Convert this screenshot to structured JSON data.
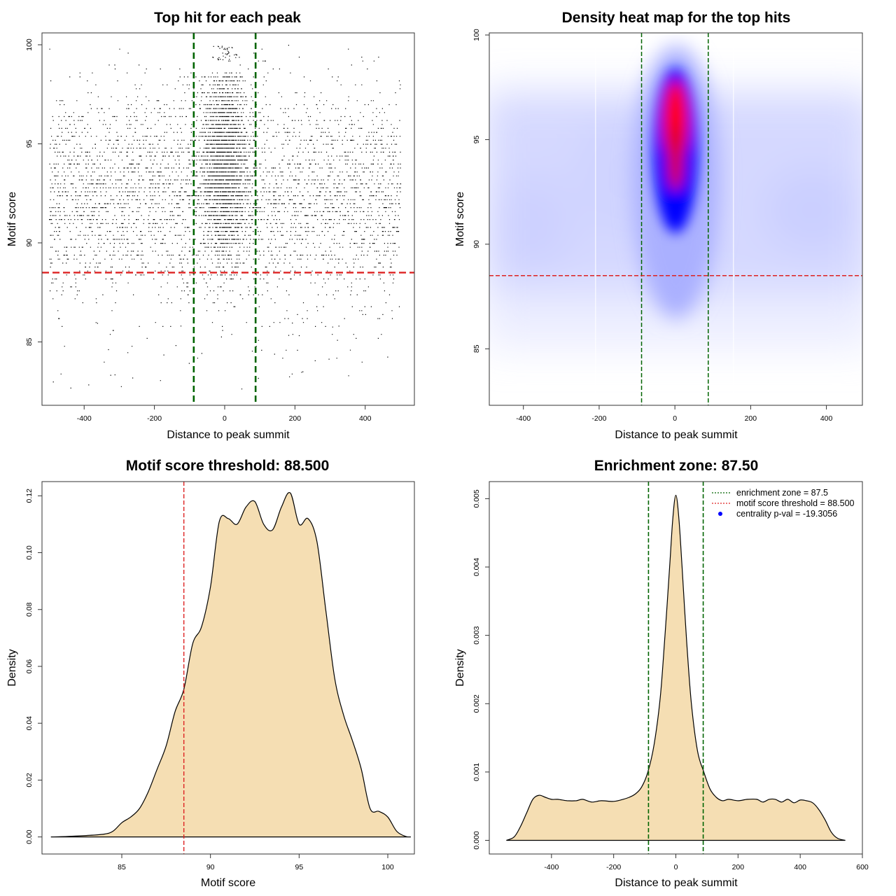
{
  "colors": {
    "points": "#000000",
    "enrichment_line": "#006400",
    "threshold_line": "#dd2222",
    "density_fill": "#f5deb3",
    "heat_low": "#ffffff",
    "heat_mid": "#0000ff",
    "heat_high": "#ff0000",
    "legend_point": "#0000ff"
  },
  "chart_data": [
    {
      "type": "scatter",
      "title": "Top hit for each peak",
      "xlabel": "Distance to peak summit",
      "ylabel": "Motif score",
      "xlim": [
        -520,
        540
      ],
      "ylim": [
        81.8,
        100.6
      ],
      "xticks": [
        -400,
        -200,
        0,
        200,
        400
      ],
      "yticks": [
        85,
        90,
        95,
        100
      ],
      "grid": false,
      "vlines": [
        -88,
        88
      ],
      "hline": 88.5,
      "points_description_stats": {
        "x_range": [
          -500,
          500
        ],
        "y_range": [
          82.3,
          100
        ],
        "center_cluster_x": [
          -60,
          60
        ],
        "approx_points": 5500
      }
    },
    {
      "type": "heatmap",
      "title": "Density heat map for the top hits",
      "xlabel": "Distance to peak summit",
      "ylabel": "Motif score",
      "xlim": [
        -490,
        495
      ],
      "ylim": [
        82.3,
        100.1
      ],
      "xticks": [
        -400,
        -200,
        0,
        200,
        400
      ],
      "yticks": [
        85,
        90,
        95,
        100
      ],
      "grid": false,
      "vlines": [
        -88,
        88
      ],
      "hline": 88.5,
      "hotspot": {
        "x": 0,
        "y": 95.5
      }
    },
    {
      "type": "area",
      "title": "Motif score threshold: 88.500",
      "xlabel": "Motif score",
      "ylabel": "Density",
      "xlim": [
        80.5,
        101.5
      ],
      "ylim": [
        -0.006,
        0.125
      ],
      "xticks": [
        85,
        90,
        95,
        100
      ],
      "yticks": [
        0.0,
        0.02,
        0.04,
        0.06,
        0.08,
        0.1,
        0.12
      ],
      "ytick_labels": [
        "0.00",
        "0.02",
        "0.04",
        "0.06",
        "0.08",
        "0.10",
        "0.12"
      ],
      "grid": false,
      "vline": 88.5,
      "x": [
        81.0,
        82.0,
        83.0,
        84.0,
        84.5,
        85.0,
        85.5,
        86.0,
        86.5,
        87.0,
        87.5,
        88.0,
        88.5,
        89.0,
        89.5,
        90.0,
        90.5,
        91.0,
        91.5,
        92.0,
        92.5,
        93.0,
        93.5,
        94.0,
        94.5,
        95.0,
        95.5,
        96.0,
        96.5,
        97.0,
        97.5,
        98.0,
        98.5,
        99.0,
        99.5,
        100.0,
        100.5,
        101.0,
        101.3
      ],
      "y": [
        0.0,
        0.0002,
        0.0005,
        0.001,
        0.002,
        0.005,
        0.007,
        0.01,
        0.016,
        0.024,
        0.032,
        0.044,
        0.052,
        0.068,
        0.074,
        0.088,
        0.111,
        0.112,
        0.11,
        0.116,
        0.118,
        0.11,
        0.108,
        0.116,
        0.121,
        0.11,
        0.112,
        0.104,
        0.08,
        0.056,
        0.043,
        0.034,
        0.024,
        0.01,
        0.009,
        0.007,
        0.002,
        0.0002,
        0.0
      ]
    },
    {
      "type": "area",
      "title": "Enrichment zone: 87.50",
      "xlabel": "Distance to peak summit",
      "ylabel": "Density",
      "xlim": [
        -600,
        600
      ],
      "ylim": [
        -0.0002,
        0.00525
      ],
      "xticks": [
        -400,
        -200,
        0,
        200,
        400,
        600
      ],
      "yticks": [
        0.0,
        0.001,
        0.002,
        0.003,
        0.004,
        0.005
      ],
      "ytick_labels": [
        "0.000",
        "0.001",
        "0.002",
        "0.003",
        "0.004",
        "0.005"
      ],
      "grid": false,
      "vlines": [
        -88,
        88
      ],
      "legend_position": "top-right",
      "legend": [
        {
          "label": "enrichment zone = 87.5",
          "style": "dotted",
          "color": "#006400"
        },
        {
          "label": "motif score threshold = 88.500",
          "style": "dotted",
          "color": "#dd2222"
        },
        {
          "label": "centrality p-val = -19.3056",
          "style": "point",
          "color": "#0000ff"
        }
      ],
      "x": [
        -545,
        -520,
        -500,
        -480,
        -460,
        -440,
        -420,
        -400,
        -380,
        -350,
        -320,
        -300,
        -270,
        -240,
        -200,
        -170,
        -150,
        -130,
        -110,
        -90,
        -70,
        -50,
        -35,
        -20,
        -10,
        0,
        10,
        20,
        35,
        50,
        70,
        90,
        110,
        130,
        150,
        170,
        200,
        230,
        260,
        280,
        300,
        320,
        340,
        360,
        380,
        400,
        420,
        440,
        460,
        480,
        500,
        520,
        545
      ],
      "y": [
        0.0,
        5e-05,
        0.0002,
        0.0004,
        0.0006,
        0.00066,
        0.00063,
        0.0006,
        0.0006,
        0.00058,
        0.00058,
        0.0006,
        0.00056,
        0.00058,
        0.00057,
        0.0006,
        0.00063,
        0.00068,
        0.00078,
        0.001,
        0.0014,
        0.0021,
        0.003,
        0.004,
        0.0047,
        0.00505,
        0.0047,
        0.004,
        0.0029,
        0.002,
        0.0013,
        0.001,
        0.00075,
        0.00063,
        0.00058,
        0.0006,
        0.00058,
        0.0006,
        0.0006,
        0.00056,
        0.0006,
        0.0006,
        0.00056,
        0.0006,
        0.00055,
        0.00059,
        0.00058,
        0.00055,
        0.00045,
        0.0003,
        0.00012,
        3e-05,
        0.0
      ]
    }
  ]
}
